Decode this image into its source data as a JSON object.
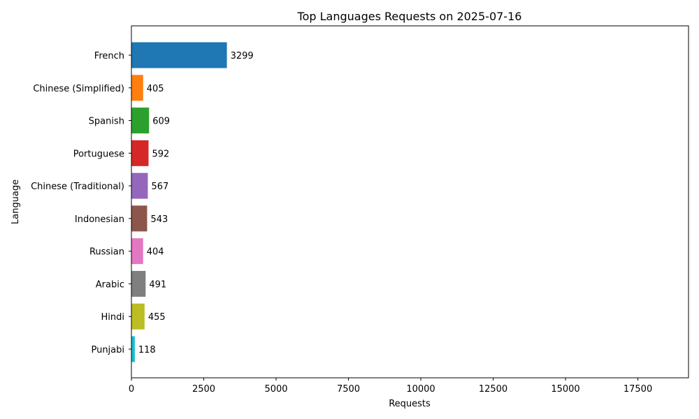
{
  "chart_data": {
    "type": "bar",
    "orientation": "horizontal",
    "title": "Top Languages Requests on 2025-07-16",
    "xlabel": "Requests",
    "ylabel": "Language",
    "xlim": [
      0,
      19250
    ],
    "xticks": [
      0,
      2500,
      5000,
      7500,
      10000,
      12500,
      15000,
      17500
    ],
    "grid": false,
    "categories": [
      "French",
      "Chinese (Simplified)",
      "Spanish",
      "Portuguese",
      "Chinese (Traditional)",
      "Indonesian",
      "Russian",
      "Arabic",
      "Hindi",
      "Punjabi"
    ],
    "values": [
      3299,
      405,
      609,
      592,
      567,
      543,
      404,
      491,
      455,
      118
    ],
    "colors": [
      "#1f77b4",
      "#ff7f0e",
      "#2ca02c",
      "#d62728",
      "#9467bd",
      "#8c564b",
      "#e377c2",
      "#7f7f7f",
      "#bcbd22",
      "#17becf"
    ]
  }
}
